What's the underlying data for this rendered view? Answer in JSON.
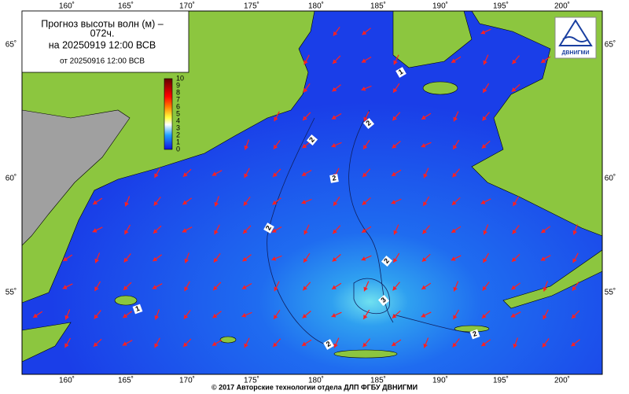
{
  "title": {
    "line1": "Прогноз высоты волн (м) –",
    "line2": "072ч.",
    "line3": "на 20250919 12:00 ВСВ",
    "line4": "от 20250916 12:00 ВСВ"
  },
  "colorbar": {
    "labels": [
      10,
      9,
      8,
      7,
      6,
      5,
      4,
      3,
      2,
      1,
      0
    ]
  },
  "lon_labels": [
    "160˚",
    "165˚",
    "170˚",
    "175˚",
    "180˚",
    "185˚",
    "190˚",
    "195˚",
    "200˚"
  ],
  "lat_labels": [
    "65˚",
    "60˚",
    "55˚"
  ],
  "contour_labels": [
    "1",
    "2",
    "2",
    "2",
    "2",
    "2",
    "3",
    "1",
    "2",
    "2"
  ],
  "logo": "ДВНИГМИ",
  "footer": "© 2017 Авторские технологии отдела ДЛП ФГБУ ДВНИГМИ"
}
